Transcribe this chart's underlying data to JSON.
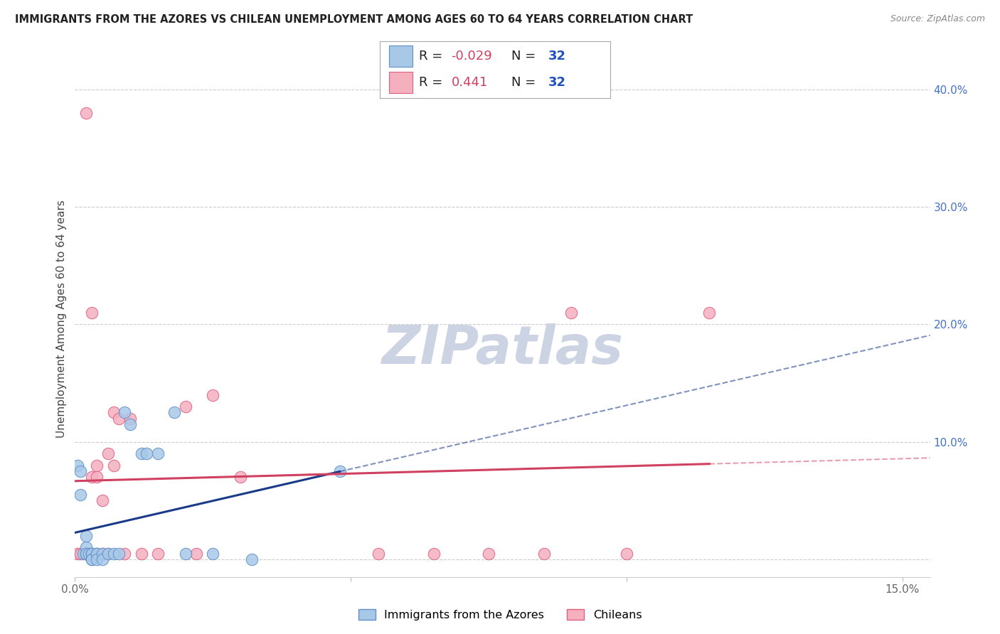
{
  "title": "IMMIGRANTS FROM THE AZORES VS CHILEAN UNEMPLOYMENT AMONG AGES 60 TO 64 YEARS CORRELATION CHART",
  "source": "Source: ZipAtlas.com",
  "ylabel": "Unemployment Among Ages 60 to 64 years",
  "xlim": [
    0.0,
    0.155
  ],
  "ylim": [
    -0.015,
    0.425
  ],
  "xlabel_tick_vals": [
    0.0,
    0.05,
    0.1,
    0.15
  ],
  "xlabel_tick_labels": [
    "0.0%",
    "",
    "",
    "15.0%"
  ],
  "ylabel_tick_vals": [
    0.0,
    0.1,
    0.2,
    0.3,
    0.4
  ],
  "ylabel_tick_labels": [
    "",
    "10.0%",
    "20.0%",
    "30.0%",
    "40.0%"
  ],
  "azores_color_fill": "#a8c8e8",
  "azores_color_edge": "#6090c8",
  "chilean_color_fill": "#f5b0c0",
  "chilean_color_edge": "#e06080",
  "trend_azores_color": "#1a3a8a",
  "trend_chilean_color": "#d04060",
  "watermark_text": "ZIPatlas",
  "watermark_color": "#ccd4e4",
  "legend_bottom_labels": [
    "Immigrants from the Azores",
    "Chileans"
  ],
  "title_color": "#222222",
  "source_color": "#888888",
  "axis_label_color": "#444444",
  "right_tick_color": "#4472c4",
  "bottom_tick_color": "#666666",
  "azores_x": [
    0.0005,
    0.001,
    0.001,
    0.0015,
    0.002,
    0.002,
    0.002,
    0.002,
    0.0025,
    0.003,
    0.003,
    0.003,
    0.003,
    0.003,
    0.004,
    0.004,
    0.004,
    0.005,
    0.005,
    0.006,
    0.007,
    0.008,
    0.009,
    0.01,
    0.012,
    0.013,
    0.015,
    0.018,
    0.02,
    0.025,
    0.032,
    0.048
  ],
  "azores_y": [
    0.08,
    0.055,
    0.075,
    0.005,
    0.005,
    0.01,
    0.02,
    0.005,
    0.005,
    0.005,
    0.005,
    0.005,
    0.0,
    0.0,
    0.005,
    0.005,
    0.0,
    0.005,
    0.0,
    0.005,
    0.005,
    0.005,
    0.125,
    0.115,
    0.09,
    0.09,
    0.09,
    0.125,
    0.005,
    0.005,
    0.0,
    0.075
  ],
  "chilean_x": [
    0.0005,
    0.001,
    0.002,
    0.002,
    0.002,
    0.003,
    0.003,
    0.004,
    0.004,
    0.004,
    0.005,
    0.005,
    0.006,
    0.006,
    0.007,
    0.007,
    0.008,
    0.009,
    0.01,
    0.012,
    0.015,
    0.02,
    0.022,
    0.025,
    0.03,
    0.055,
    0.065,
    0.075,
    0.085,
    0.09,
    0.1,
    0.115
  ],
  "chilean_y": [
    0.005,
    0.005,
    0.38,
    0.005,
    0.005,
    0.07,
    0.21,
    0.08,
    0.07,
    0.005,
    0.05,
    0.005,
    0.09,
    0.005,
    0.125,
    0.08,
    0.12,
    0.005,
    0.12,
    0.005,
    0.005,
    0.13,
    0.005,
    0.14,
    0.07,
    0.005,
    0.005,
    0.005,
    0.005,
    0.21,
    0.005,
    0.21
  ]
}
